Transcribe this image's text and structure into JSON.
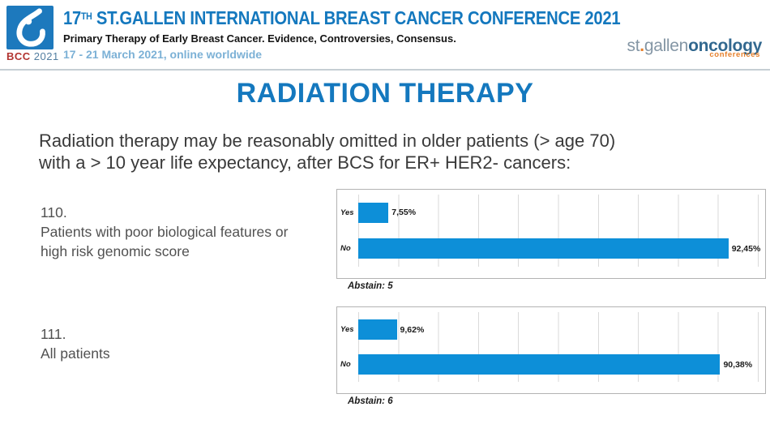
{
  "header": {
    "logo": {
      "bcc": "BCC",
      "year": "2021"
    },
    "title": {
      "prefix": "17",
      "sup": "TH",
      "rest": " ST.GALLEN INTERNATIONAL BREAST CANCER CONFERENCE 2021"
    },
    "subtitle": "Primary Therapy of Early Breast Cancer. Evidence, Controversies, Consensus.",
    "dates": "17 - 21 March 2021, online worldwide",
    "right_logo": {
      "st": "st",
      "dot": ".",
      "gallen": "gallen",
      "oncology": "oncology",
      "conferences": "conferences"
    }
  },
  "page_title": "RADIATION THERAPY",
  "question": {
    "line1": "Radiation therapy may be reasonably omitted in older patients (> age 70)",
    "line2": "with a > 10 year life expectancy, after BCS for ER+ HER2- cancers:"
  },
  "polls": [
    {
      "number": "110.",
      "label_lines": [
        "Patients with poor biological features or",
        "high risk genomic score"
      ],
      "abstain": "Abstain: 5"
    },
    {
      "number": "111.",
      "label_lines": [
        "All patients"
      ],
      "abstain": "Abstain: 6"
    }
  ],
  "chart_data": [
    {
      "type": "bar",
      "orientation": "horizontal",
      "question_number": "110",
      "categories": [
        "Yes",
        "No"
      ],
      "values": [
        7.55,
        92.45
      ],
      "value_labels": [
        "7,55%",
        "92,45%"
      ],
      "xlim": [
        0,
        100
      ],
      "gridline_step_percent": 10,
      "grid": true,
      "bar_color": "#0d8fd8",
      "abstain": 5
    },
    {
      "type": "bar",
      "orientation": "horizontal",
      "question_number": "111",
      "categories": [
        "Yes",
        "No"
      ],
      "values": [
        9.62,
        90.38
      ],
      "value_labels": [
        "9,62%",
        "90,38%"
      ],
      "xlim": [
        0,
        100
      ],
      "gridline_step_percent": 10,
      "grid": true,
      "bar_color": "#0d8fd8",
      "abstain": 6
    }
  ],
  "colors": {
    "accent_blue": "#1478be",
    "bar_blue": "#0d8fd8",
    "date_blue": "#7cb1d6",
    "bcc_red": "#b23430",
    "conference_orange": "#e67f2a"
  }
}
